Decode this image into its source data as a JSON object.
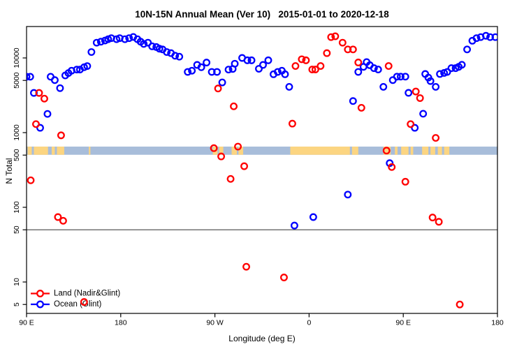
{
  "title": "10N-15N Annual Mean (Ver 10)   2015-01-01 to 2020-12-18",
  "chart_data": {
    "type": "scatter",
    "title": "10N-15N Annual Mean (Ver 10)   2015-01-01 to 2020-12-18",
    "xlabel": "Longitude (deg E)",
    "ylabel": "N Total",
    "x_axis": {
      "range_deg": [
        90,
        540
      ],
      "ticks": [
        {
          "deg": 90,
          "label": "90 E"
        },
        {
          "deg": 180,
          "label": "180"
        },
        {
          "deg": 270,
          "label": "90 W"
        },
        {
          "deg": 360,
          "label": "0"
        },
        {
          "deg": 450,
          "label": "90 E"
        },
        {
          "deg": 540,
          "label": "180"
        }
      ]
    },
    "y_axis": {
      "scale": "log",
      "range": [
        3.8,
        26400
      ],
      "ticks": [
        {
          "value": 5,
          "label": "5"
        },
        {
          "value": 10,
          "label": "10"
        },
        {
          "value": 50,
          "label": "50"
        },
        {
          "value": 100,
          "label": "100"
        },
        {
          "value": 500,
          "label": "500"
        },
        {
          "value": 1000,
          "label": "1000"
        },
        {
          "value": 5000,
          "label": "5000"
        },
        {
          "value": 10000,
          "label": "10000"
        }
      ]
    },
    "reference_line": {
      "value": 50,
      "color": "#444444"
    },
    "map_band": {
      "value_range": [
        505,
        650
      ],
      "ocean_color": "#a8bdda",
      "land_color": "#fcd581",
      "land_segments_deg": [
        [
          91,
          95
        ],
        [
          97,
          110.5
        ],
        [
          114,
          117
        ],
        [
          119,
          126
        ],
        [
          149.5,
          151
        ],
        [
          268,
          272.5
        ],
        [
          274,
          278
        ],
        [
          286,
          291
        ],
        [
          292.5,
          297
        ],
        [
          342,
          399
        ],
        [
          401,
          407
        ],
        [
          431,
          438
        ],
        [
          442,
          444.5
        ],
        [
          448,
          455
        ],
        [
          457,
          459.5
        ],
        [
          468,
          474
        ],
        [
          476,
          480.5
        ],
        [
          483,
          487
        ],
        [
          489,
          494
        ]
      ]
    },
    "legend": {
      "position": "bottom-left",
      "entries": [
        {
          "label": "Land (Nadir&Glint)",
          "color": "#ff0000"
        },
        {
          "label": "Ocean (Glint)",
          "color": "#0000ff"
        }
      ]
    },
    "series": [
      {
        "name": "Land (Nadir&Glint)",
        "color": "#ff0000",
        "points": [
          [
            94,
            230
          ],
          [
            99,
            1300
          ],
          [
            102,
            3400
          ],
          [
            107,
            2850
          ],
          [
            120,
            74
          ],
          [
            123,
            920
          ],
          [
            125,
            66
          ],
          [
            145,
            5.4
          ],
          [
            269,
            620
          ],
          [
            273,
            3900
          ],
          [
            276,
            480
          ],
          [
            285,
            240
          ],
          [
            288,
            2250
          ],
          [
            292,
            650
          ],
          [
            298,
            355
          ],
          [
            300,
            16
          ],
          [
            336,
            11.5
          ],
          [
            344,
            1320
          ],
          [
            347,
            7800
          ],
          [
            353,
            9600
          ],
          [
            357,
            9300
          ],
          [
            363,
            7000
          ],
          [
            366,
            7000
          ],
          [
            371,
            7800
          ],
          [
            377,
            11600
          ],
          [
            381,
            19000
          ],
          [
            385,
            19500
          ],
          [
            392,
            16000
          ],
          [
            397,
            13000
          ],
          [
            402,
            13000
          ],
          [
            407,
            8700
          ],
          [
            410,
            2150
          ],
          [
            434,
            575
          ],
          [
            436,
            7800
          ],
          [
            439,
            346
          ],
          [
            452,
            220
          ],
          [
            457,
            1300
          ],
          [
            462,
            3550
          ],
          [
            466,
            2900
          ],
          [
            478,
            73
          ],
          [
            481,
            850
          ],
          [
            484,
            64
          ],
          [
            504,
            5
          ]
        ]
      },
      {
        "name": "Ocean (Glint)",
        "color": "#0000ff",
        "points": [
          [
            90,
            5600
          ],
          [
            93.5,
            5600
          ],
          [
            97,
            3400
          ],
          [
            103,
            1160
          ],
          [
            110,
            1780
          ],
          [
            113,
            5600
          ],
          [
            117,
            5050
          ],
          [
            122,
            3940
          ],
          [
            127,
            5830
          ],
          [
            130,
            6270
          ],
          [
            133,
            6740
          ],
          [
            138,
            6980
          ],
          [
            141,
            6980
          ],
          [
            145,
            7510
          ],
          [
            148,
            7780
          ],
          [
            152,
            12000
          ],
          [
            157,
            16000
          ],
          [
            161,
            16500
          ],
          [
            165,
            17100
          ],
          [
            168,
            17800
          ],
          [
            171,
            18400
          ],
          [
            176,
            17800
          ],
          [
            179,
            18400
          ],
          [
            184,
            17800
          ],
          [
            188,
            18400
          ],
          [
            192,
            19100
          ],
          [
            196,
            17800
          ],
          [
            199,
            16500
          ],
          [
            202,
            15400
          ],
          [
            206,
            16000
          ],
          [
            210,
            14300
          ],
          [
            214,
            14000
          ],
          [
            217,
            13300
          ],
          [
            220,
            13000
          ],
          [
            224,
            12000
          ],
          [
            228,
            11600
          ],
          [
            232,
            10700
          ],
          [
            236,
            10400
          ],
          [
            244,
            6500
          ],
          [
            248,
            6740
          ],
          [
            253,
            8070
          ],
          [
            257,
            7510
          ],
          [
            262,
            8670
          ],
          [
            267,
            6500
          ],
          [
            272,
            6500
          ],
          [
            277,
            4700
          ],
          [
            283,
            6980
          ],
          [
            287,
            7120
          ],
          [
            289,
            8370
          ],
          [
            296,
            10000
          ],
          [
            301,
            9300
          ],
          [
            305,
            9300
          ],
          [
            312,
            7160
          ],
          [
            316,
            8070
          ],
          [
            321,
            9300
          ],
          [
            326,
            6050
          ],
          [
            330,
            6500
          ],
          [
            334,
            6740
          ],
          [
            337,
            6050
          ],
          [
            341,
            4100
          ],
          [
            346,
            57
          ],
          [
            364,
            74
          ],
          [
            397,
            148
          ],
          [
            402,
            2650
          ],
          [
            407,
            6500
          ],
          [
            412,
            7600
          ],
          [
            415,
            8800
          ],
          [
            418,
            8000
          ],
          [
            422,
            7300
          ],
          [
            426,
            7000
          ],
          [
            431,
            4100
          ],
          [
            437,
            390
          ],
          [
            440,
            5050
          ],
          [
            444,
            5620
          ],
          [
            447.5,
            5620
          ],
          [
            452,
            5620
          ],
          [
            455,
            3410
          ],
          [
            461,
            1160
          ],
          [
            469,
            1790
          ],
          [
            471,
            6100
          ],
          [
            474,
            5450
          ],
          [
            476,
            4900
          ],
          [
            481,
            4100
          ],
          [
            485,
            6100
          ],
          [
            489,
            6300
          ],
          [
            492,
            6500
          ],
          [
            496,
            7300
          ],
          [
            500,
            7300
          ],
          [
            503,
            7600
          ],
          [
            506,
            8100
          ],
          [
            511,
            13000
          ],
          [
            516,
            17000
          ],
          [
            520,
            18400
          ],
          [
            524,
            19000
          ],
          [
            529,
            19800
          ],
          [
            533,
            19000
          ],
          [
            538,
            19000
          ]
        ]
      }
    ]
  }
}
